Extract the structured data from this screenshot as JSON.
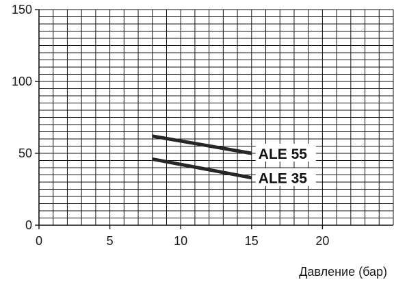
{
  "chart_data": {
    "type": "line",
    "title": "",
    "xlabel": "Давление (бар)",
    "ylabel": "",
    "xlim": [
      0,
      25
    ],
    "ylim": [
      0,
      150
    ],
    "x_ticks": [
      "0",
      "5",
      "10",
      "15",
      "20"
    ],
    "y_ticks": [
      "0",
      "50",
      "100",
      "150"
    ],
    "grid": true,
    "grid_x_step": 1,
    "grid_y_step": 5,
    "series": [
      {
        "name": "ALE 55",
        "x": [
          8,
          15
        ],
        "y": [
          62,
          50
        ]
      },
      {
        "name": "ALE 35",
        "x": [
          8,
          15
        ],
        "y": [
          46,
          33
        ]
      }
    ]
  },
  "colors": {
    "grid": "#111111",
    "series": "#262626",
    "text": "#1a1a1a"
  }
}
